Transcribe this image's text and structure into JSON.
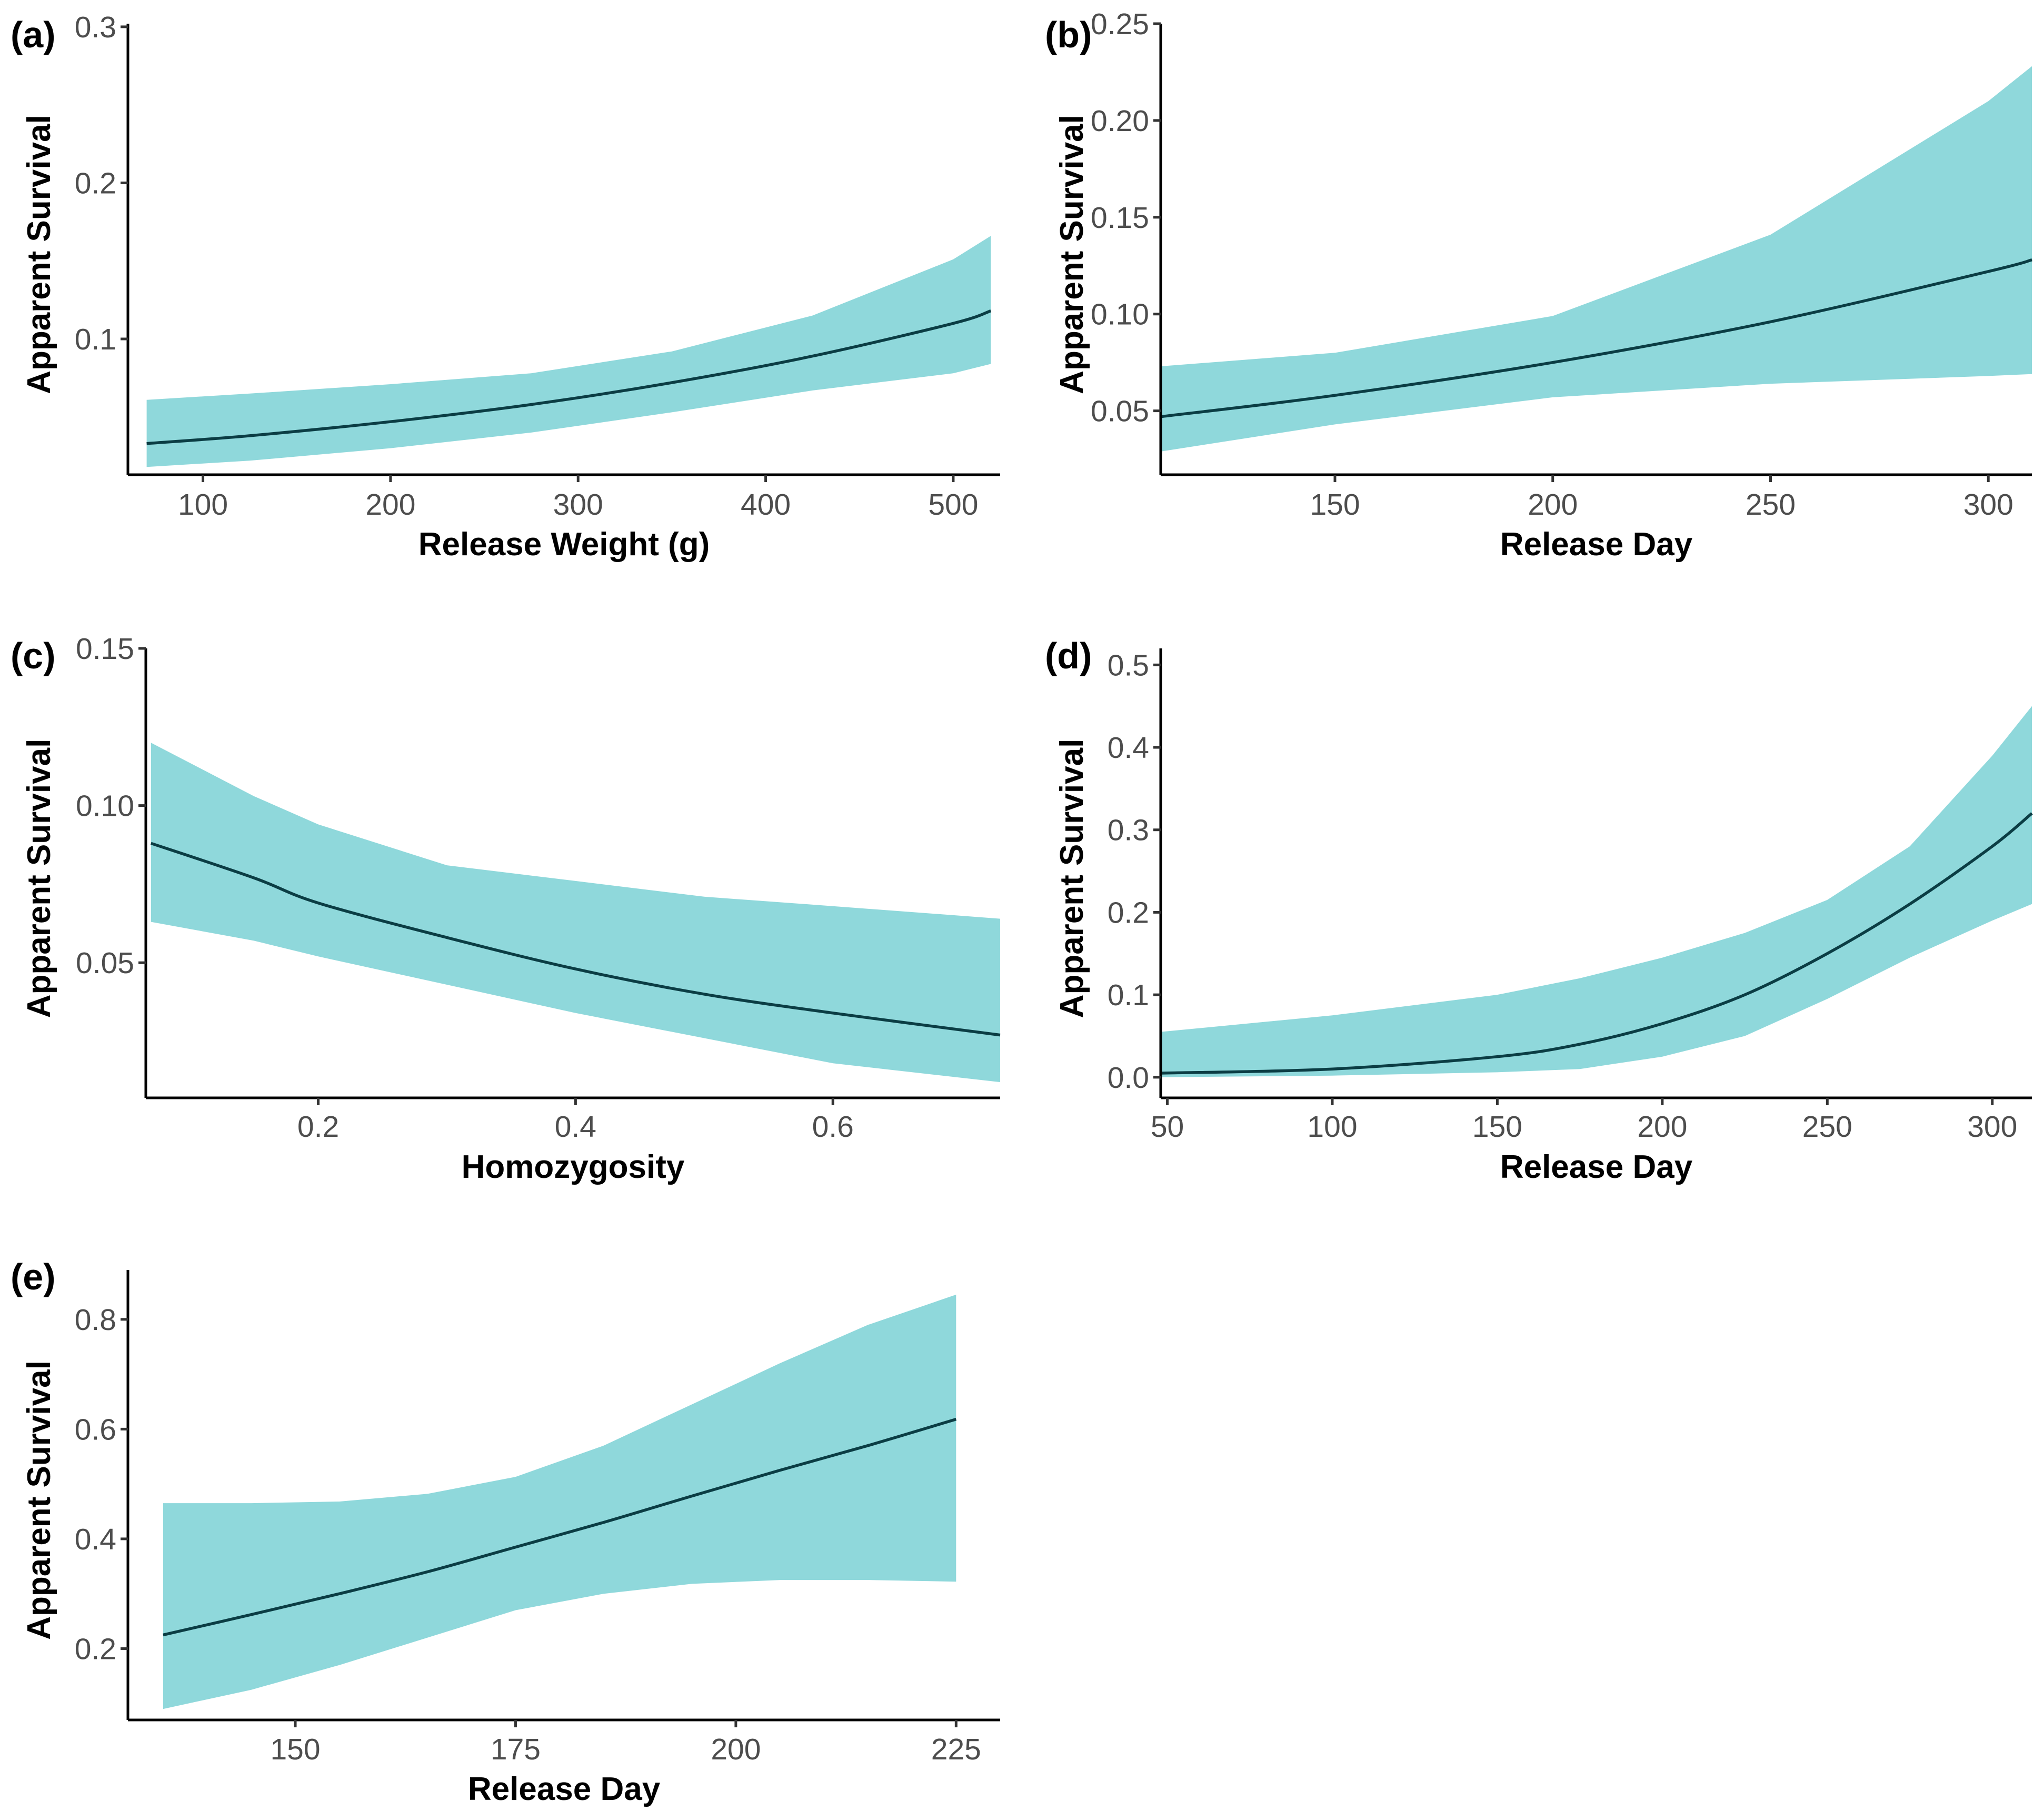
{
  "figure": {
    "band_color": "#8fd8db",
    "line_color": "#0b3d44"
  },
  "chart_data": [
    {
      "id": "a",
      "type": "area",
      "panel_label": "(a)",
      "xlabel": "Release Weight (g)",
      "ylabel": "Apparent Survival",
      "xlim": [
        60,
        525
      ],
      "ylim": [
        0.013,
        0.302
      ],
      "xticks": [
        100,
        200,
        300,
        400,
        500
      ],
      "xtick_labels": [
        "100",
        "200",
        "300",
        "400",
        "500"
      ],
      "yticks": [
        0.1,
        0.2,
        0.3
      ],
      "ytick_labels": [
        "0.1",
        "0.2",
        "0.3"
      ],
      "series": [
        {
          "name": "estimate",
          "x": [
            70,
            125,
            200,
            275,
            350,
            425,
            500,
            520
          ],
          "y": [
            0.033,
            0.038,
            0.047,
            0.058,
            0.072,
            0.089,
            0.11,
            0.118
          ]
        },
        {
          "name": "lower",
          "x": [
            70,
            125,
            200,
            275,
            350,
            425,
            500,
            520
          ],
          "y": [
            0.018,
            0.022,
            0.03,
            0.04,
            0.053,
            0.067,
            0.078,
            0.084
          ]
        },
        {
          "name": "upper",
          "x": [
            70,
            125,
            200,
            275,
            350,
            425,
            500,
            520
          ],
          "y": [
            0.061,
            0.065,
            0.071,
            0.078,
            0.092,
            0.115,
            0.151,
            0.166
          ]
        }
      ]
    },
    {
      "id": "b",
      "type": "area",
      "panel_label": "(b)",
      "xlabel": "Release Day",
      "ylabel": "Apparent Survival",
      "xlim": [
        110,
        310
      ],
      "ylim": [
        0.017,
        0.25
      ],
      "xticks": [
        150,
        200,
        250,
        300
      ],
      "xtick_labels": [
        "150",
        "200",
        "250",
        "300"
      ],
      "yticks": [
        0.05,
        0.1,
        0.15,
        0.2,
        0.25
      ],
      "ytick_labels": [
        "0.05",
        "0.10",
        "0.15",
        "0.20",
        "0.25"
      ],
      "series": [
        {
          "name": "estimate",
          "x": [
            110,
            150,
            200,
            250,
            300,
            310
          ],
          "y": [
            0.047,
            0.058,
            0.075,
            0.096,
            0.122,
            0.128
          ]
        },
        {
          "name": "lower",
          "x": [
            110,
            150,
            200,
            250,
            300,
            310
          ],
          "y": [
            0.029,
            0.043,
            0.057,
            0.064,
            0.068,
            0.069
          ]
        },
        {
          "name": "upper",
          "x": [
            110,
            150,
            200,
            250,
            300,
            310
          ],
          "y": [
            0.073,
            0.08,
            0.099,
            0.141,
            0.21,
            0.228
          ]
        }
      ]
    },
    {
      "id": "c",
      "type": "area",
      "panel_label": "(c)",
      "xlabel": "Homozygosity",
      "ylabel": "Apparent Survival",
      "xlim": [
        0.066,
        0.73
      ],
      "ylim": [
        0.007,
        0.15
      ],
      "xticks": [
        0.2,
        0.4,
        0.6
      ],
      "xtick_labels": [
        "0.2",
        "0.4",
        "0.6"
      ],
      "yticks": [
        0.05,
        0.1,
        0.15
      ],
      "ytick_labels": [
        "0.05",
        "0.10",
        "0.15"
      ],
      "series": [
        {
          "name": "estimate",
          "x": [
            0.07,
            0.15,
            0.2,
            0.3,
            0.4,
            0.5,
            0.6,
            0.73
          ],
          "y": [
            0.088,
            0.077,
            0.069,
            0.058,
            0.048,
            0.04,
            0.034,
            0.027
          ]
        },
        {
          "name": "lower",
          "x": [
            0.07,
            0.15,
            0.2,
            0.3,
            0.4,
            0.5,
            0.6,
            0.73
          ],
          "y": [
            0.063,
            0.057,
            0.052,
            0.043,
            0.034,
            0.026,
            0.018,
            0.012
          ]
        },
        {
          "name": "upper",
          "x": [
            0.07,
            0.15,
            0.2,
            0.3,
            0.4,
            0.5,
            0.6,
            0.73
          ],
          "y": [
            0.12,
            0.103,
            0.094,
            0.081,
            0.076,
            0.071,
            0.068,
            0.064
          ]
        }
      ]
    },
    {
      "id": "d",
      "type": "area",
      "panel_label": "(d)",
      "xlabel": "Release Day",
      "ylabel": "Apparent Survival",
      "xlim": [
        48,
        312
      ],
      "ylim": [
        -0.025,
        0.52
      ],
      "xticks": [
        50,
        100,
        150,
        200,
        250,
        300
      ],
      "xtick_labels": [
        "50",
        "100",
        "150",
        "200",
        "250",
        "300"
      ],
      "yticks": [
        0.0,
        0.1,
        0.2,
        0.3,
        0.4,
        0.5
      ],
      "ytick_labels": [
        "0.0",
        "0.1",
        "0.2",
        "0.3",
        "0.4",
        "0.5"
      ],
      "series": [
        {
          "name": "estimate",
          "x": [
            48,
            100,
            150,
            175,
            200,
            225,
            250,
            275,
            300,
            312
          ],
          "y": [
            0.005,
            0.01,
            0.025,
            0.04,
            0.065,
            0.1,
            0.15,
            0.21,
            0.28,
            0.32
          ]
        },
        {
          "name": "lower",
          "x": [
            48,
            100,
            150,
            175,
            200,
            225,
            250,
            275,
            300,
            312
          ],
          "y": [
            0.0,
            0.002,
            0.006,
            0.01,
            0.025,
            0.05,
            0.095,
            0.145,
            0.19,
            0.21
          ]
        },
        {
          "name": "upper",
          "x": [
            48,
            100,
            150,
            175,
            200,
            225,
            250,
            275,
            300,
            312
          ],
          "y": [
            0.055,
            0.075,
            0.1,
            0.12,
            0.145,
            0.175,
            0.215,
            0.28,
            0.39,
            0.45
          ]
        }
      ]
    },
    {
      "id": "e",
      "type": "area",
      "panel_label": "(e)",
      "xlabel": "Release Day",
      "ylabel": "Apparent Survival",
      "xlim": [
        131,
        230
      ],
      "ylim": [
        0.07,
        0.89
      ],
      "xticks": [
        150,
        175,
        200,
        225
      ],
      "xtick_labels": [
        "150",
        "175",
        "200",
        "225"
      ],
      "yticks": [
        0.2,
        0.4,
        0.6,
        0.8
      ],
      "ytick_labels": [
        "0.2",
        "0.4",
        "0.6",
        "0.8"
      ],
      "series": [
        {
          "name": "estimate",
          "x": [
            135,
            145,
            155,
            165,
            175,
            185,
            195,
            205,
            215,
            225
          ],
          "y": [
            0.225,
            0.262,
            0.3,
            0.34,
            0.385,
            0.43,
            0.478,
            0.525,
            0.57,
            0.618
          ]
        },
        {
          "name": "lower",
          "x": [
            135,
            145,
            155,
            165,
            175,
            185,
            195,
            205,
            215,
            225
          ],
          "y": [
            0.09,
            0.125,
            0.17,
            0.22,
            0.27,
            0.3,
            0.318,
            0.325,
            0.325,
            0.322
          ]
        },
        {
          "name": "upper",
          "x": [
            135,
            145,
            155,
            165,
            175,
            185,
            195,
            205,
            215,
            225
          ],
          "y": [
            0.465,
            0.465,
            0.468,
            0.482,
            0.513,
            0.57,
            0.645,
            0.72,
            0.79,
            0.845
          ]
        }
      ]
    }
  ]
}
